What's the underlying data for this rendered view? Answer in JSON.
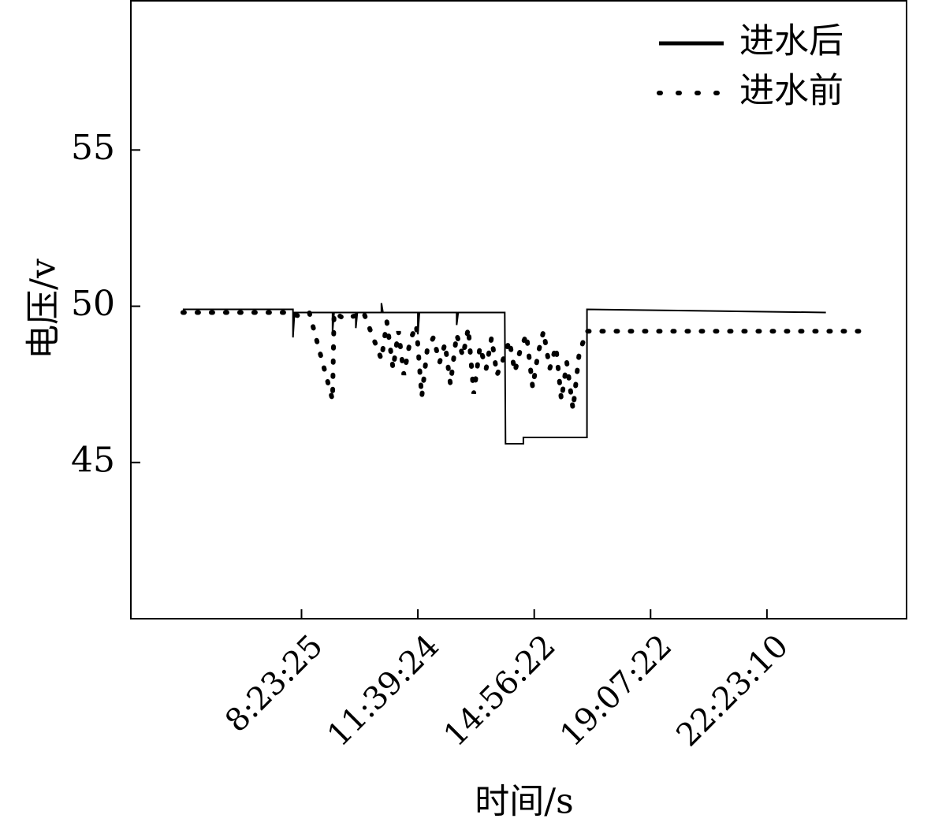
{
  "chart_data": {
    "type": "line",
    "xlabel": "时间/s",
    "ylabel": "电压/v",
    "xlim": [
      0,
      1000
    ],
    "ylim": [
      40,
      59.8
    ],
    "xticks": [
      {
        "value": 220,
        "label": "8:23:25"
      },
      {
        "value": 370,
        "label": "11:39:24"
      },
      {
        "value": 520,
        "label": "14:56:22"
      },
      {
        "value": 670,
        "label": "19:07:22"
      },
      {
        "value": 820,
        "label": "22:23:10"
      }
    ],
    "yticks": [
      45,
      50,
      55
    ],
    "legend": "upper right",
    "series": [
      {
        "name": "进水后",
        "color": "#000000",
        "linestyle": "solid",
        "x": [
          67,
          209,
          209,
          211,
          260,
          260,
          262,
          290,
          290,
          292,
          323,
          323,
          325,
          370,
          370,
          372,
          420,
          420,
          422,
          482,
          483,
          506,
          506,
          588,
          588,
          896
        ],
        "values": [
          49.9,
          49.9,
          49.0,
          49.8,
          49.8,
          49.2,
          49.8,
          49.8,
          49.3,
          49.8,
          49.8,
          50.1,
          49.8,
          49.8,
          49.1,
          49.8,
          49.8,
          49.4,
          49.8,
          49.8,
          45.6,
          45.6,
          45.8,
          45.8,
          49.9,
          49.8
        ]
      },
      {
        "name": "进水前",
        "color": "#000000",
        "linestyle": "dotted",
        "x": [
          67,
          130,
          200,
          215,
          230,
          260,
          262,
          275,
          290,
          300,
          323,
          330,
          338,
          345,
          352,
          360,
          368,
          375,
          382,
          390,
          398,
          405,
          412,
          420,
          428,
          435,
          442,
          450,
          458,
          465,
          472,
          480,
          488,
          495,
          502,
          510,
          518,
          525,
          532,
          540,
          548,
          555,
          562,
          570,
          578,
          585,
          588,
          600,
          700,
          800,
          944
        ],
        "values": [
          49.8,
          49.8,
          49.8,
          49.7,
          49.8,
          47.0,
          49.8,
          49.6,
          49.7,
          49.8,
          48.3,
          49.5,
          48.0,
          49.2,
          47.8,
          48.9,
          49.4,
          47.1,
          48.6,
          49.0,
          48.2,
          48.8,
          47.5,
          49.1,
          48.4,
          49.3,
          47.2,
          48.7,
          48.0,
          49.0,
          47.8,
          48.3,
          48.9,
          47.9,
          48.6,
          49.1,
          47.4,
          48.5,
          49.2,
          48.0,
          48.7,
          47.0,
          48.2,
          46.7,
          48.5,
          49.0,
          49.2,
          49.2,
          49.2,
          49.2,
          49.2
        ]
      }
    ]
  }
}
